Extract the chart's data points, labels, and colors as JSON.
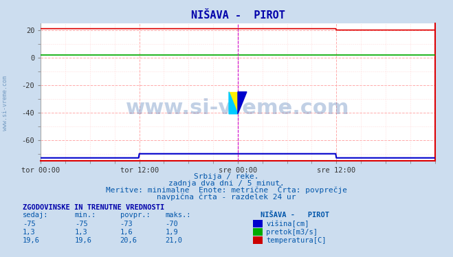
{
  "title": "NIŠAVA -  PIROT",
  "background_color": "#ccddef",
  "plot_bg_color": "#ffffff",
  "grid_color_major": "#ffaaaa",
  "xlim": [
    0,
    576
  ],
  "ylim": [
    -75,
    25
  ],
  "yticks": [
    20,
    0,
    -20,
    -40,
    -60
  ],
  "xtick_labels": [
    "tor 00:00",
    "tor 12:00",
    "sre 00:00",
    "sre 12:00"
  ],
  "xtick_positions": [
    0,
    144,
    288,
    432
  ],
  "x_end": 576,
  "temp_step_x": 432,
  "temp_step_value_before": 21.0,
  "temp_step_value_after": 20.0,
  "pretok_value": 1.6,
  "visina_value": -73,
  "visina_step_x1": 144,
  "visina_step_x2": 432,
  "visina_step_value": -70,
  "vertical_line_x": 288,
  "watermark": "www.si-vreme.com",
  "watermark_color": "#3366aa",
  "watermark_alpha": 0.3,
  "subtitle1": "Srbija / reke.",
  "subtitle2": "zadnja dva dni / 5 minut.",
  "subtitle3": "Meritve: minimalne  Enote: metrične  Črta: povprečje",
  "subtitle4": "navpična črta - razdelek 24 ur",
  "table_header": "ZGODOVINSKE IN TRENUTNE VREDNOSTI",
  "col_headers": [
    "sedaj:",
    "min.:",
    "povpr.:",
    "maks.:"
  ],
  "station_label": "NIŠAVA -   PIROT",
  "rows": [
    {
      "sedaj": "-75",
      "min": "-75",
      "povpr": "-73",
      "maks": "-70",
      "color": "#0000cc",
      "label": "višina[cm]"
    },
    {
      "sedaj": "1,3",
      "min": "1,3",
      "povpr": "1,6",
      "maks": "1,9",
      "color": "#00aa00",
      "label": "pretok[m3/s]"
    },
    {
      "sedaj": "19,6",
      "min": "19,6",
      "povpr": "20,6",
      "maks": "21,0",
      "color": "#cc0000",
      "label": "temperatura[C]"
    }
  ],
  "ylabel_text": "www.si-vreme.com",
  "red_color": "#dd0000",
  "green_color": "#00aa00",
  "blue_color": "#0000cc",
  "magenta_color": "#cc00cc",
  "title_color": "#0000aa",
  "text_color": "#0055aa"
}
